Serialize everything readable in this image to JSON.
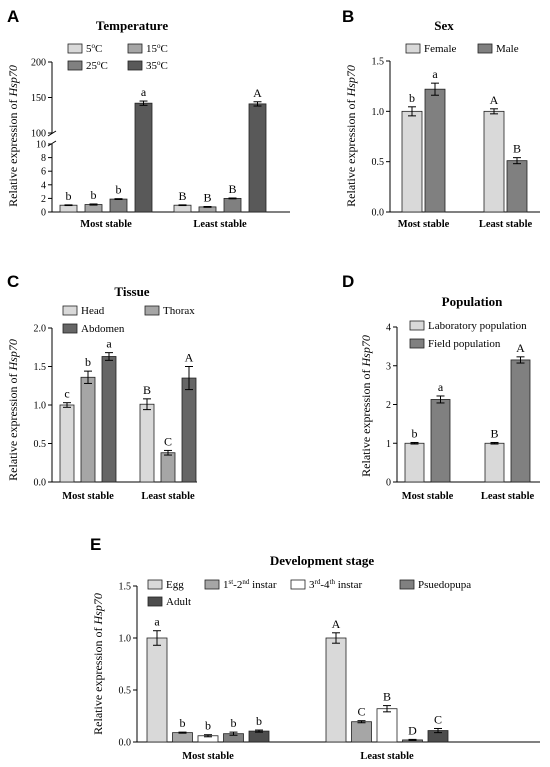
{
  "chart_data": [
    {
      "type": "bar",
      "panel": "A",
      "title": "Temperature",
      "ylabel": "Relative expression of Hsp70",
      "ylabel_plain": "Relative expression of ",
      "ylabel_gene": "Hsp70",
      "categories": [
        "Most stable",
        "Least stable"
      ],
      "ylim": [
        0,
        200
      ],
      "axis_break": true,
      "legend_position": "top-left",
      "series": [
        {
          "name": "5°C",
          "color": "#d9d9d9",
          "values": [
            1.0,
            1.0
          ],
          "errors": [
            0.05,
            0.05
          ],
          "letters": [
            "b",
            "B"
          ]
        },
        {
          "name": "15°C",
          "color": "#a6a6a6",
          "values": [
            1.1,
            0.75
          ],
          "errors": [
            0.08,
            0.06
          ],
          "letters": [
            "b",
            "B"
          ]
        },
        {
          "name": "25°C",
          "color": "#808080",
          "values": [
            1.9,
            2.0
          ],
          "errors": [
            0.06,
            0.06
          ],
          "letters": [
            "b",
            "B"
          ]
        },
        {
          "name": "35°C",
          "color": "#595959",
          "values": [
            142,
            141
          ],
          "errors": [
            3,
            3
          ],
          "letters": [
            "a",
            "A"
          ]
        }
      ],
      "yticks_lower": [
        "0",
        "2",
        "4",
        "6",
        "8",
        "10"
      ],
      "yticks_upper": [
        "100",
        "150",
        "200"
      ]
    },
    {
      "type": "bar",
      "panel": "B",
      "title": "Sex",
      "ylabel": "Relative expression of Hsp70",
      "ylabel_plain": "Relative expression of ",
      "ylabel_gene": "Hsp70",
      "categories": [
        "Most stable",
        "Least stable"
      ],
      "ylim": [
        0,
        1.5
      ],
      "legend_position": "top-right",
      "series": [
        {
          "name": "Female",
          "color": "#d9d9d9",
          "values": [
            1.0,
            1.0
          ],
          "errors": [
            0.045,
            0.025
          ],
          "letters": [
            "b",
            "A"
          ]
        },
        {
          "name": "Male",
          "color": "#808080",
          "values": [
            1.22,
            0.51
          ],
          "errors": [
            0.06,
            0.03
          ],
          "letters": [
            "a",
            "B"
          ]
        }
      ],
      "yticks": [
        "0.0",
        "0.5",
        "1.0",
        "1.5"
      ]
    },
    {
      "type": "bar",
      "panel": "C",
      "title": "Tissue",
      "ylabel": "Relative expression of Hsp70",
      "ylabel_plain": "Relative expression of ",
      "ylabel_gene": "Hsp70",
      "categories": [
        "Most stable",
        "Least stable"
      ],
      "ylim": [
        0,
        2.0
      ],
      "legend_position": "top-left",
      "series": [
        {
          "name": "Head",
          "color": "#d9d9d9",
          "values": [
            1.0,
            1.01
          ],
          "errors": [
            0.03,
            0.07
          ],
          "letters": [
            "c",
            "B"
          ]
        },
        {
          "name": "Thorax",
          "color": "#a6a6a6",
          "values": [
            1.36,
            0.38
          ],
          "errors": [
            0.08,
            0.03
          ],
          "letters": [
            "b",
            "C"
          ]
        },
        {
          "name": "Abdomen",
          "color": "#666666",
          "values": [
            1.63,
            1.35
          ],
          "errors": [
            0.05,
            0.15
          ],
          "letters": [
            "a",
            "A"
          ]
        }
      ],
      "yticks": [
        "0.0",
        "0.5",
        "1.0",
        "1.5",
        "2.0"
      ]
    },
    {
      "type": "bar",
      "panel": "D",
      "title": "Population",
      "ylabel": "Relative expression of Hsp70",
      "ylabel_plain": "Relative expression of ",
      "ylabel_gene": "Hsp70",
      "categories": [
        "Most stable",
        "Least stable"
      ],
      "ylim": [
        0,
        4
      ],
      "legend_position": "top-left",
      "series": [
        {
          "name": "Laboratory population",
          "color": "#d9d9d9",
          "values": [
            1.0,
            1.0
          ],
          "errors": [
            0.02,
            0.02
          ],
          "letters": [
            "b",
            "B"
          ]
        },
        {
          "name": "Field population",
          "color": "#808080",
          "values": [
            2.13,
            3.15
          ],
          "errors": [
            0.09,
            0.08
          ],
          "letters": [
            "a",
            "A"
          ]
        }
      ],
      "yticks": [
        "0",
        "1",
        "2",
        "3",
        "4"
      ]
    },
    {
      "type": "bar",
      "panel": "E",
      "title": "Development stage",
      "ylabel": "Relative expression of Hsp70",
      "ylabel_plain": "Relative expression of ",
      "ylabel_gene": "Hsp70",
      "categories": [
        "Most stable",
        "Least stable"
      ],
      "ylim": [
        0,
        1.5
      ],
      "legend_position": "top",
      "series": [
        {
          "name": "Egg",
          "color": "#d9d9d9",
          "values": [
            1.0,
            1.0
          ],
          "errors": [
            0.07,
            0.05
          ],
          "letters": [
            "a",
            "A"
          ]
        },
        {
          "name": "1st-2nd instar",
          "color": "#a6a6a6",
          "values": [
            0.09,
            0.195
          ],
          "errors": [
            0.005,
            0.01
          ],
          "letters": [
            "b",
            "C"
          ]
        },
        {
          "name": "3rd-4th instar",
          "color": "#ffffff",
          "values": [
            0.06,
            0.32
          ],
          "errors": [
            0.01,
            0.03
          ],
          "letters": [
            "b",
            "B"
          ]
        },
        {
          "name": "Psuedopupa",
          "color": "#808080",
          "values": [
            0.08,
            0.02
          ],
          "errors": [
            0.015,
            0.005
          ],
          "letters": [
            "b",
            "D"
          ]
        },
        {
          "name": "Adult",
          "color": "#4d4d4d",
          "values": [
            0.105,
            0.11
          ],
          "errors": [
            0.01,
            0.02
          ],
          "letters": [
            "b",
            "C"
          ]
        }
      ],
      "yticks": [
        "0.0",
        "0.5",
        "1.0",
        "1.5"
      ]
    }
  ]
}
